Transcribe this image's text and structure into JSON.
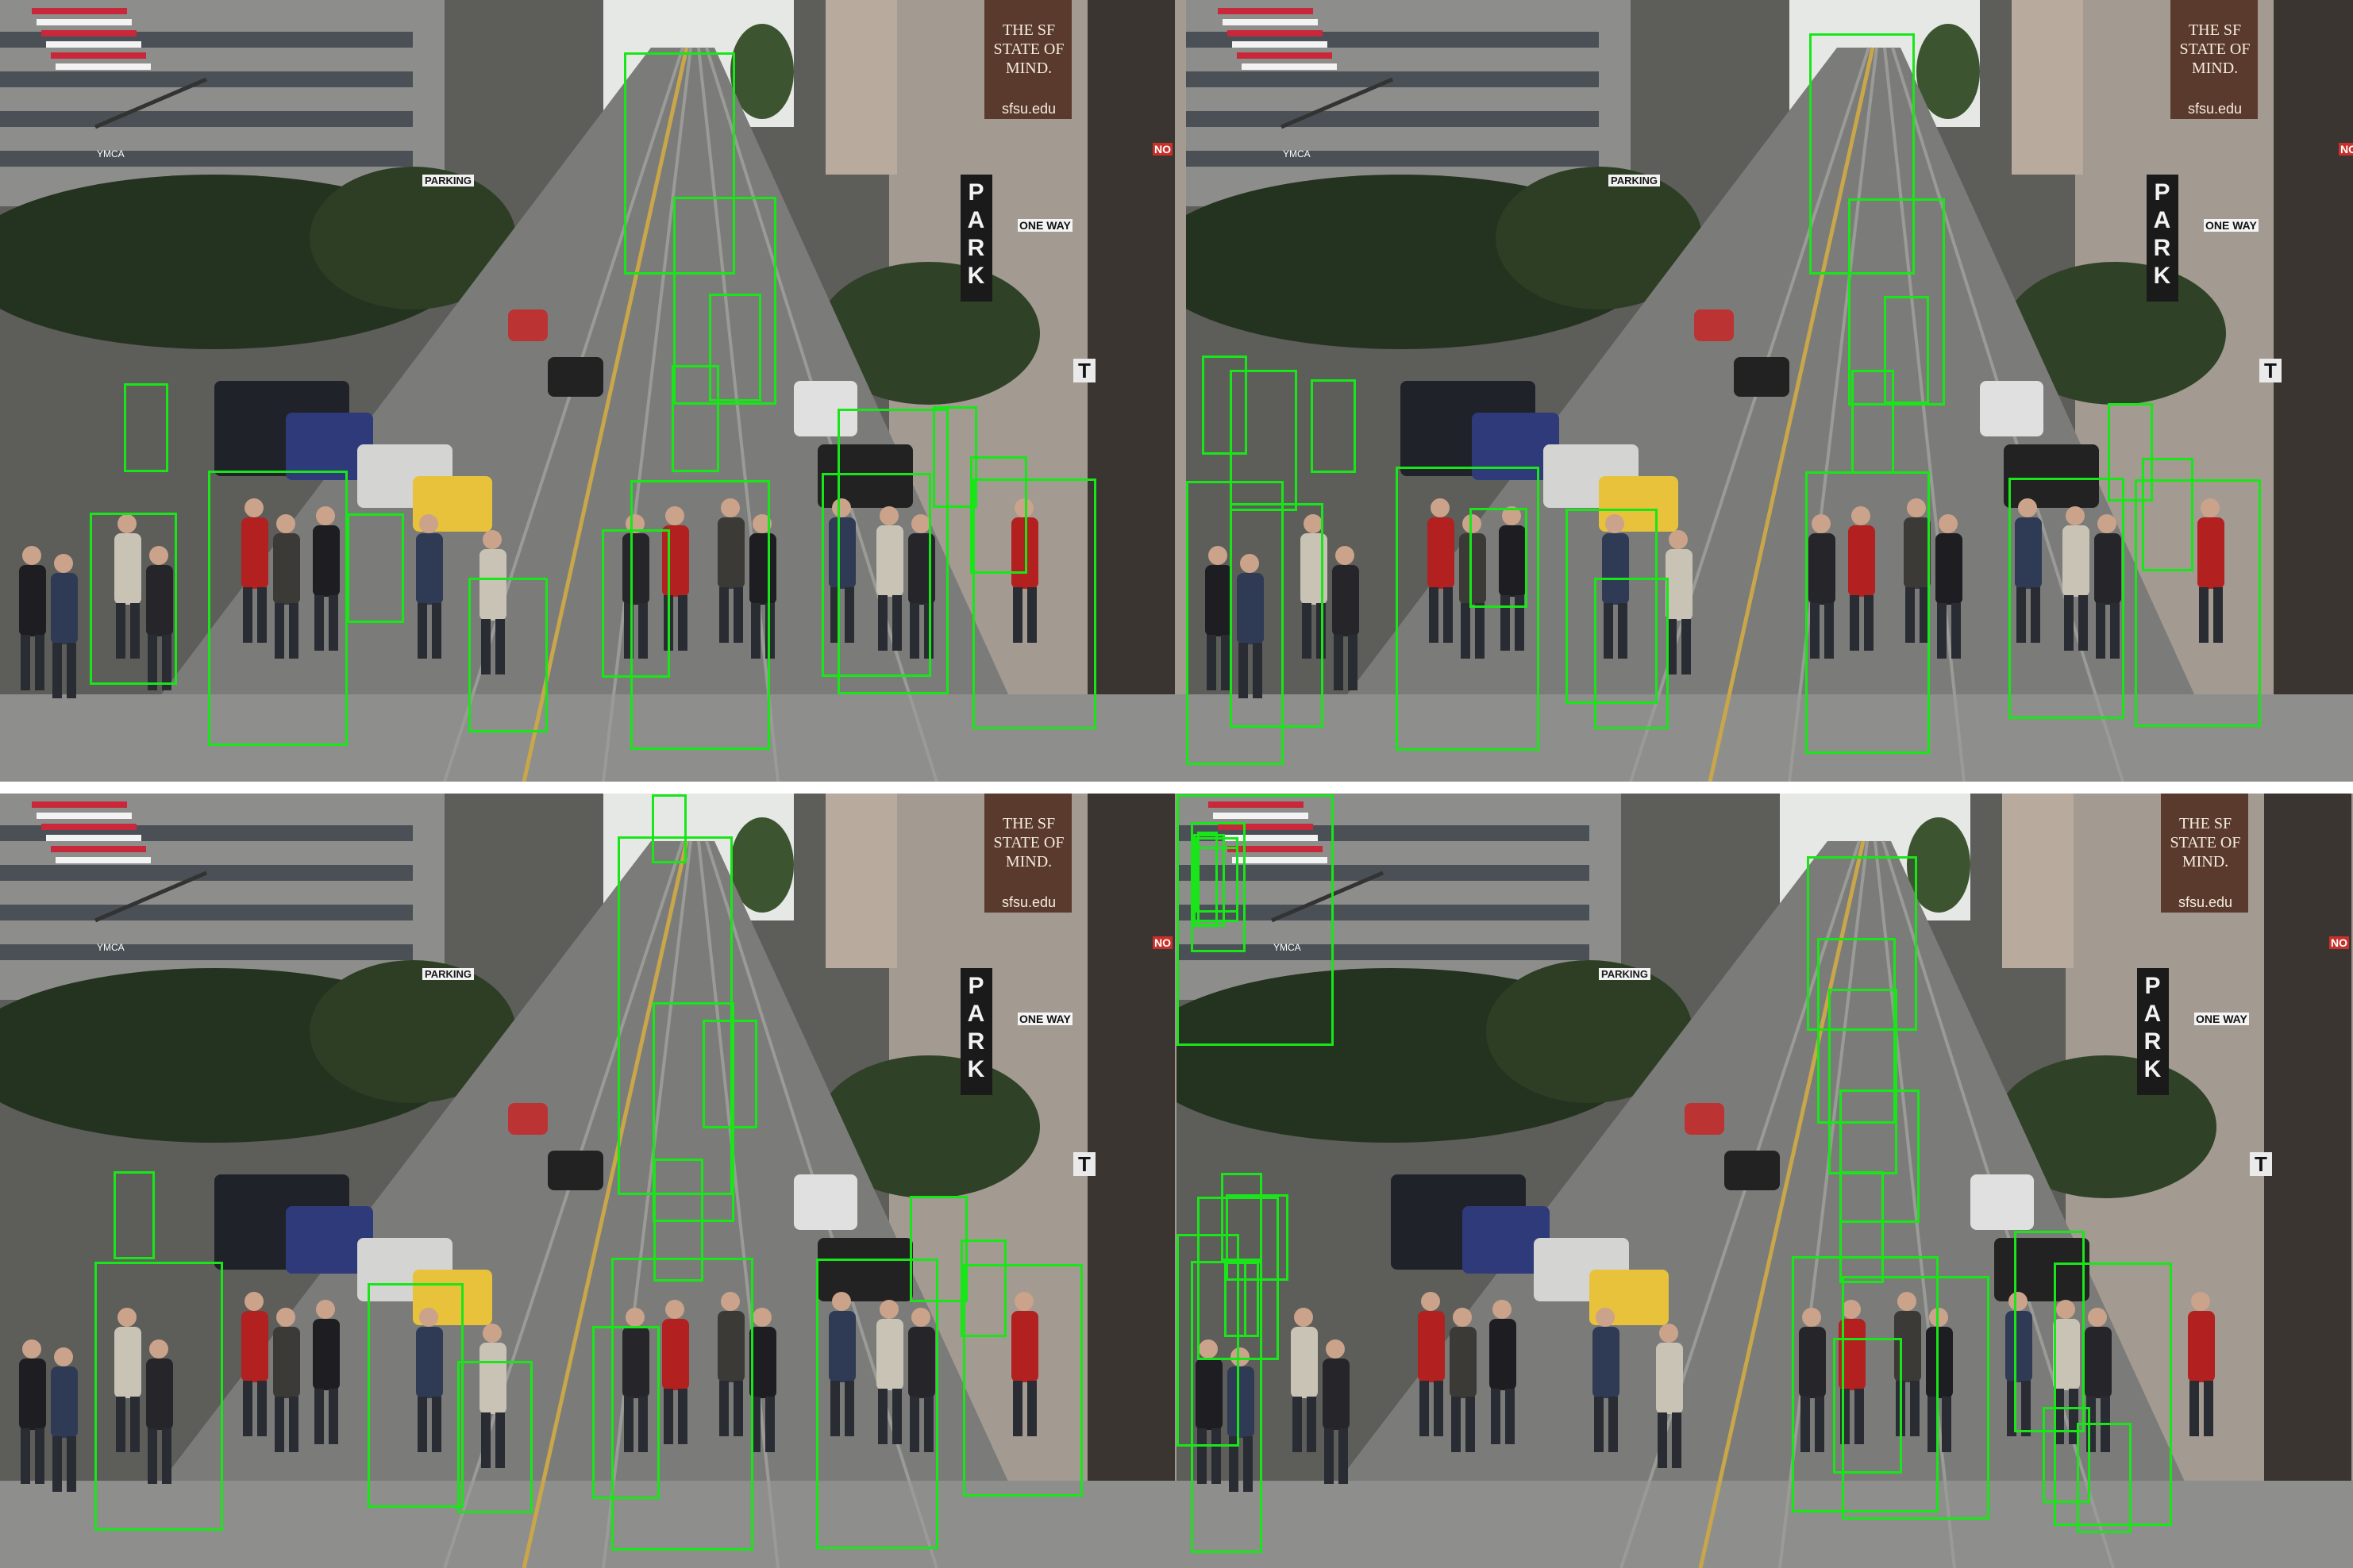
{
  "figure": {
    "layout": "2x2 grid of detection result panels",
    "box_color": "#19e619",
    "detected_class": "pedestrian"
  },
  "scene_text": {
    "park_sign": "PARK",
    "banner_line1": "THE SF",
    "banner_line2": "STATE OF",
    "banner_line3": "MIND.",
    "banner_url": "sfsu.edu",
    "parking_sign": "PARKING",
    "ymca_banner": "YMCA",
    "one_way_sign": "ONE WAY",
    "no_sign": "NO",
    "t_sign": "T"
  },
  "panels": [
    {
      "id": "top-left",
      "detection_count": 17
    },
    {
      "id": "top-right",
      "detection_count": 18
    },
    {
      "id": "bottom-left",
      "detection_count": 18
    },
    {
      "id": "bottom-right",
      "detection_count": 25
    }
  ]
}
